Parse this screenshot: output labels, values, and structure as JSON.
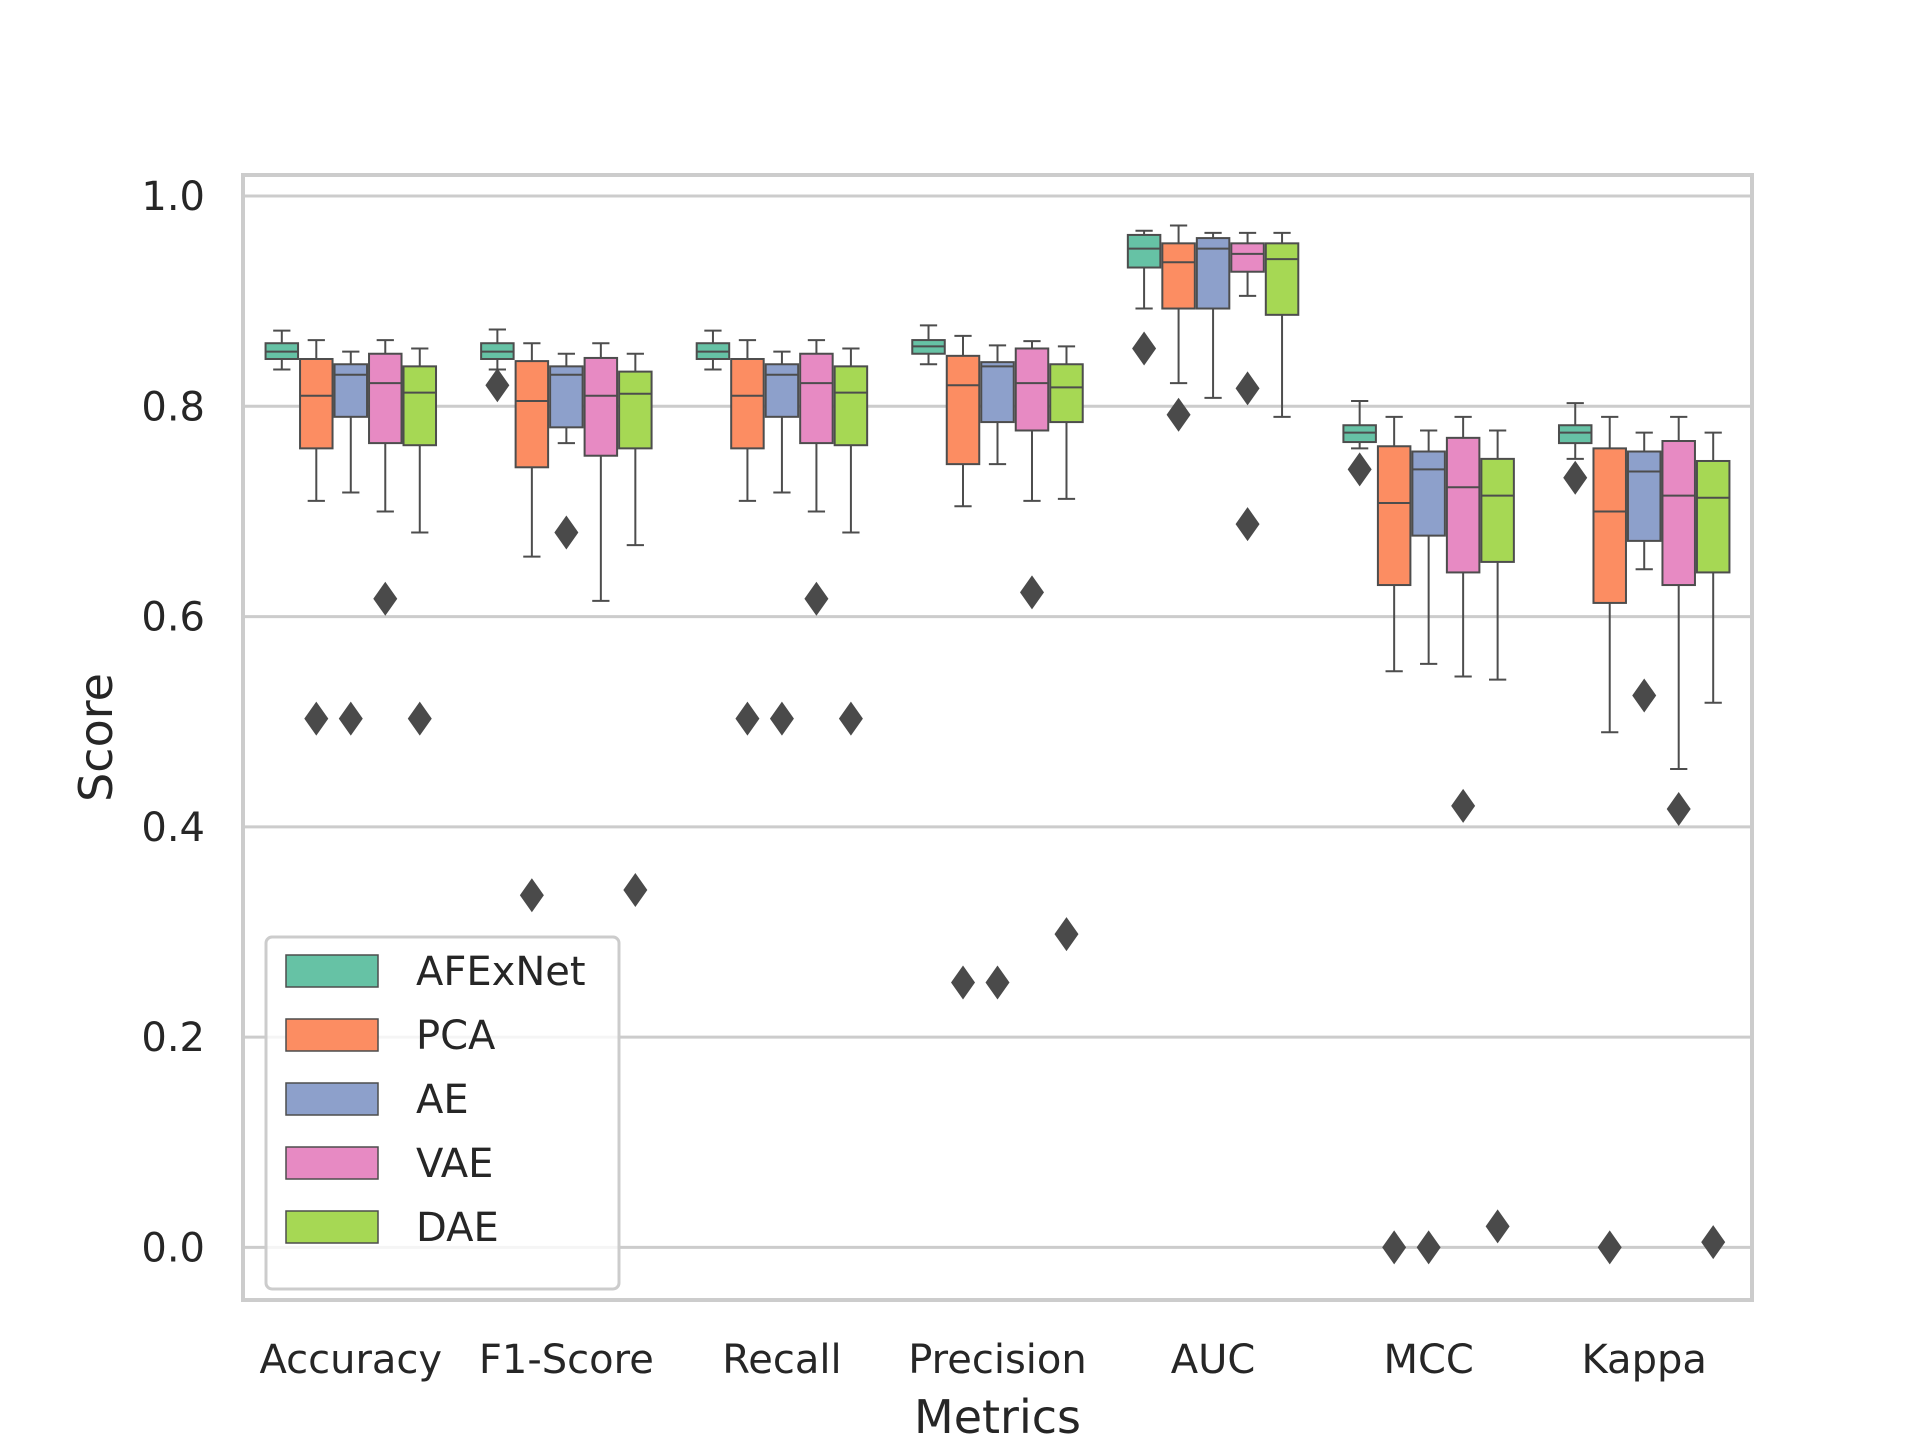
{
  "chart_data": {
    "type": "boxplot",
    "xlabel": "Metrics",
    "ylabel": "Score",
    "ylim": [
      -0.05,
      1.02
    ],
    "yticks": [
      "0.0",
      "0.2",
      "0.4",
      "0.6",
      "0.8",
      "1.0"
    ],
    "grid": true,
    "legend_position": "bottom-left",
    "categories": [
      "Accuracy",
      "F1-Score",
      "Recall",
      "Precision",
      "AUC",
      "MCC",
      "Kappa"
    ],
    "series": [
      {
        "name": "AFExNet",
        "color": "#66c2a5",
        "boxes": [
          {
            "whislo": 0.835,
            "q1": 0.845,
            "med": 0.852,
            "q3": 0.86,
            "whishi": 0.872,
            "fliers": []
          },
          {
            "whislo": 0.835,
            "q1": 0.845,
            "med": 0.852,
            "q3": 0.86,
            "whishi": 0.873,
            "fliers": [
              0.82
            ]
          },
          {
            "whislo": 0.835,
            "q1": 0.845,
            "med": 0.852,
            "q3": 0.86,
            "whishi": 0.872,
            "fliers": []
          },
          {
            "whislo": 0.84,
            "q1": 0.85,
            "med": 0.857,
            "q3": 0.863,
            "whishi": 0.877,
            "fliers": []
          },
          {
            "whislo": 0.893,
            "q1": 0.932,
            "med": 0.95,
            "q3": 0.963,
            "whishi": 0.967,
            "fliers": [
              0.855
            ]
          },
          {
            "whislo": 0.76,
            "q1": 0.766,
            "med": 0.775,
            "q3": 0.782,
            "whishi": 0.805,
            "fliers": [
              0.74
            ]
          },
          {
            "whislo": 0.75,
            "q1": 0.765,
            "med": 0.775,
            "q3": 0.782,
            "whishi": 0.803,
            "fliers": [
              0.732
            ]
          }
        ]
      },
      {
        "name": "PCA",
        "color": "#fc8d62",
        "boxes": [
          {
            "whislo": 0.71,
            "q1": 0.76,
            "med": 0.81,
            "q3": 0.845,
            "whishi": 0.863,
            "fliers": [
              0.503
            ]
          },
          {
            "whislo": 0.657,
            "q1": 0.742,
            "med": 0.805,
            "q3": 0.843,
            "whishi": 0.86,
            "fliers": [
              0.335
            ]
          },
          {
            "whislo": 0.71,
            "q1": 0.76,
            "med": 0.81,
            "q3": 0.845,
            "whishi": 0.863,
            "fliers": [
              0.503
            ]
          },
          {
            "whislo": 0.705,
            "q1": 0.745,
            "med": 0.82,
            "q3": 0.848,
            "whishi": 0.867,
            "fliers": [
              0.252
            ]
          },
          {
            "whislo": 0.822,
            "q1": 0.893,
            "med": 0.937,
            "q3": 0.955,
            "whishi": 0.972,
            "fliers": [
              0.792
            ]
          },
          {
            "whislo": 0.548,
            "q1": 0.63,
            "med": 0.708,
            "q3": 0.762,
            "whishi": 0.79,
            "fliers": [
              0.0
            ]
          },
          {
            "whislo": 0.49,
            "q1": 0.613,
            "med": 0.7,
            "q3": 0.76,
            "whishi": 0.79,
            "fliers": [
              0.0
            ]
          }
        ]
      },
      {
        "name": "AE",
        "color": "#8da0cb",
        "boxes": [
          {
            "whislo": 0.718,
            "q1": 0.79,
            "med": 0.83,
            "q3": 0.84,
            "whishi": 0.852,
            "fliers": [
              0.503
            ]
          },
          {
            "whislo": 0.765,
            "q1": 0.78,
            "med": 0.83,
            "q3": 0.838,
            "whishi": 0.85,
            "fliers": [
              0.68
            ]
          },
          {
            "whislo": 0.718,
            "q1": 0.79,
            "med": 0.83,
            "q3": 0.84,
            "whishi": 0.852,
            "fliers": [
              0.503
            ]
          },
          {
            "whislo": 0.745,
            "q1": 0.785,
            "med": 0.838,
            "q3": 0.842,
            "whishi": 0.858,
            "fliers": [
              0.252
            ]
          },
          {
            "whislo": 0.808,
            "q1": 0.893,
            "med": 0.95,
            "q3": 0.96,
            "whishi": 0.965,
            "fliers": []
          },
          {
            "whislo": 0.555,
            "q1": 0.677,
            "med": 0.74,
            "q3": 0.757,
            "whishi": 0.777,
            "fliers": [
              0.0
            ]
          },
          {
            "whislo": 0.645,
            "q1": 0.672,
            "med": 0.738,
            "q3": 0.757,
            "whishi": 0.775,
            "fliers": [
              0.525
            ]
          }
        ]
      },
      {
        "name": "VAE",
        "color": "#e78ac3",
        "boxes": [
          {
            "whislo": 0.7,
            "q1": 0.765,
            "med": 0.822,
            "q3": 0.85,
            "whishi": 0.863,
            "fliers": [
              0.617
            ]
          },
          {
            "whislo": 0.615,
            "q1": 0.753,
            "med": 0.81,
            "q3": 0.846,
            "whishi": 0.86,
            "fliers": []
          },
          {
            "whislo": 0.7,
            "q1": 0.765,
            "med": 0.822,
            "q3": 0.85,
            "whishi": 0.863,
            "fliers": [
              0.617
            ]
          },
          {
            "whislo": 0.71,
            "q1": 0.777,
            "med": 0.822,
            "q3": 0.855,
            "whishi": 0.862,
            "fliers": [
              0.623
            ]
          },
          {
            "whislo": 0.905,
            "q1": 0.928,
            "med": 0.945,
            "q3": 0.955,
            "whishi": 0.965,
            "fliers": [
              0.817,
              0.688
            ]
          },
          {
            "whislo": 0.543,
            "q1": 0.642,
            "med": 0.723,
            "q3": 0.77,
            "whishi": 0.79,
            "fliers": [
              0.42
            ]
          },
          {
            "whislo": 0.455,
            "q1": 0.63,
            "med": 0.715,
            "q3": 0.767,
            "whishi": 0.79,
            "fliers": [
              0.417
            ]
          }
        ]
      },
      {
        "name": "DAE",
        "color": "#a6d854",
        "boxes": [
          {
            "whislo": 0.68,
            "q1": 0.763,
            "med": 0.813,
            "q3": 0.838,
            "whishi": 0.855,
            "fliers": [
              0.503
            ]
          },
          {
            "whislo": 0.668,
            "q1": 0.76,
            "med": 0.812,
            "q3": 0.833,
            "whishi": 0.85,
            "fliers": [
              0.34
            ]
          },
          {
            "whislo": 0.68,
            "q1": 0.763,
            "med": 0.813,
            "q3": 0.838,
            "whishi": 0.855,
            "fliers": [
              0.503
            ]
          },
          {
            "whislo": 0.712,
            "q1": 0.785,
            "med": 0.818,
            "q3": 0.84,
            "whishi": 0.857,
            "fliers": [
              0.298
            ]
          },
          {
            "whislo": 0.79,
            "q1": 0.887,
            "med": 0.94,
            "q3": 0.955,
            "whishi": 0.965,
            "fliers": []
          },
          {
            "whislo": 0.54,
            "q1": 0.652,
            "med": 0.715,
            "q3": 0.75,
            "whishi": 0.777,
            "fliers": [
              0.02
            ]
          },
          {
            "whislo": 0.518,
            "q1": 0.642,
            "med": 0.713,
            "q3": 0.748,
            "whishi": 0.775,
            "fliers": [
              0.005
            ]
          }
        ]
      }
    ]
  }
}
